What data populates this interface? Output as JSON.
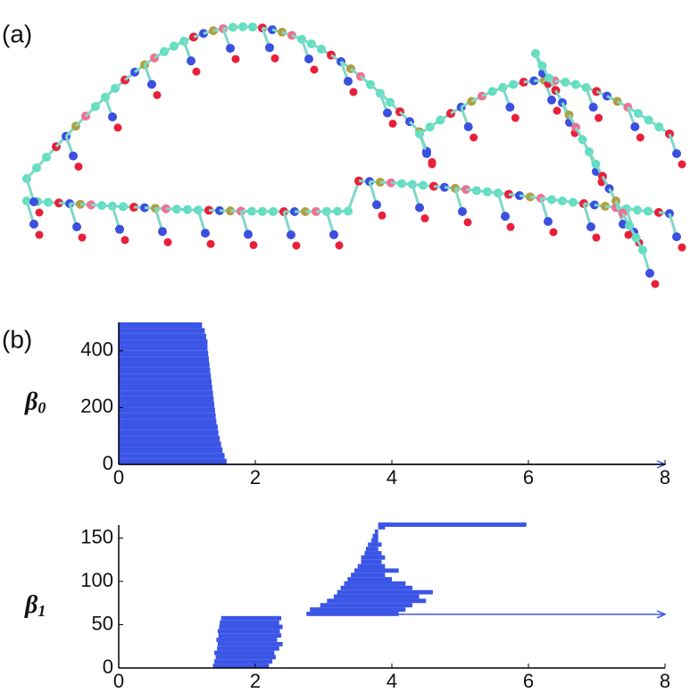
{
  "panel_a": {
    "label": "(a)"
  },
  "chart_data": [
    {
      "type": "barcode",
      "label": "(b)",
      "ylabel": "β",
      "ylabel_sub": "0",
      "color": "#3b55e6",
      "xlim": [
        0,
        8
      ],
      "xticks": [
        0,
        2,
        4,
        6,
        8
      ],
      "ylim": [
        0,
        500
      ],
      "yticks": [
        0,
        200,
        400
      ],
      "bar_height": 20,
      "y": [
        0,
        20,
        40,
        60,
        80,
        100,
        120,
        140,
        160,
        180,
        200,
        220,
        240,
        260,
        280,
        300,
        320,
        340,
        360,
        380,
        400,
        420,
        440,
        460,
        480
      ],
      "birth": [
        0,
        0,
        0,
        0,
        0,
        0,
        0,
        0,
        0,
        0,
        0,
        0,
        0,
        0,
        0,
        0,
        0,
        0,
        0,
        0,
        0,
        0,
        0,
        0,
        0
      ],
      "death": [
        1.58,
        1.55,
        1.52,
        1.5,
        1.48,
        1.46,
        1.45,
        1.43,
        1.42,
        1.41,
        1.4,
        1.39,
        1.38,
        1.37,
        1.36,
        1.35,
        1.34,
        1.33,
        1.32,
        1.31,
        1.3,
        1.3,
        1.28,
        1.26,
        1.22
      ],
      "persistent": [
        {
          "y": 0,
          "birth": 0
        }
      ]
    },
    {
      "type": "barcode",
      "ylabel": "β",
      "ylabel_sub": "1",
      "color": "#3b55e6",
      "xlim": [
        0,
        8
      ],
      "xticks": [
        0,
        2,
        4,
        6,
        8
      ],
      "ylim": [
        0,
        165
      ],
      "yticks": [
        0,
        50,
        100,
        150
      ],
      "bar_height": 5,
      "y": [
        0,
        5,
        10,
        15,
        20,
        25,
        30,
        35,
        40,
        45,
        50,
        55,
        60,
        65,
        70,
        75,
        80,
        85,
        90,
        95,
        100,
        105,
        110,
        115,
        120,
        125,
        130,
        135,
        140,
        145,
        150,
        155,
        160,
        163
      ],
      "birth": [
        1.38,
        1.4,
        1.42,
        1.4,
        1.44,
        1.45,
        1.43,
        1.46,
        1.45,
        1.47,
        1.48,
        1.5,
        2.75,
        2.8,
        2.95,
        3.05,
        3.15,
        3.2,
        3.25,
        3.3,
        3.35,
        3.4,
        3.45,
        3.5,
        3.55,
        3.55,
        3.6,
        3.62,
        3.65,
        3.7,
        3.72,
        3.75,
        3.8,
        3.8
      ],
      "death": [
        2.2,
        2.25,
        2.3,
        2.28,
        2.35,
        2.4,
        2.32,
        2.38,
        2.36,
        2.4,
        2.35,
        2.38,
        4.1,
        4.2,
        4.3,
        4.5,
        4.4,
        4.6,
        4.3,
        4.2,
        4.0,
        3.9,
        4.1,
        3.9,
        3.85,
        3.9,
        3.85,
        3.8,
        3.85,
        3.8,
        3.8,
        3.8,
        3.9,
        5.97
      ],
      "persistent": [
        {
          "y": 62,
          "birth": 2.75
        }
      ]
    }
  ]
}
